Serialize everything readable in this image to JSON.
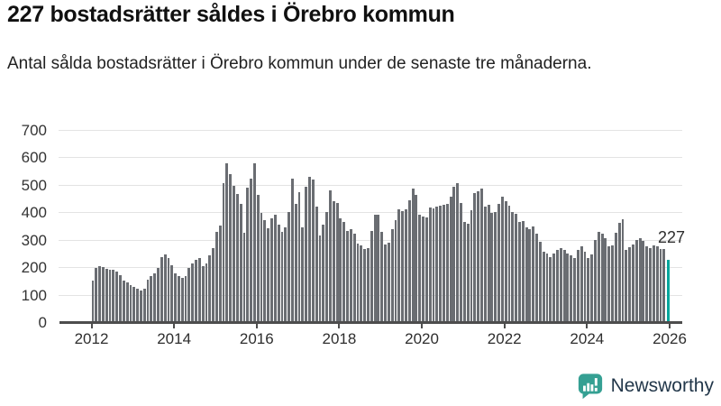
{
  "header": {
    "title": "227 bostadsrätter såldes i Örebro kommun",
    "subtitle": "Antal sålda bostadsrätter i Örebro kommun under de senaste tre månaderna."
  },
  "chart_data": {
    "type": "bar",
    "title": "227 bostadsrätter såldes i Örebro kommun",
    "xlabel": "",
    "ylabel": "Antal sålda bostadsrätter",
    "ylim": [
      0,
      700
    ],
    "y_ticks": [
      0,
      100,
      200,
      300,
      400,
      500,
      600,
      700
    ],
    "x_tick_labels": [
      "2012",
      "2014",
      "2016",
      "2018",
      "2020",
      "2022",
      "2024",
      "2026"
    ],
    "x_tick_month_offsets": [
      0,
      24,
      48,
      72,
      96,
      120,
      144,
      168
    ],
    "grid": true,
    "bar_color": "#6a6d72",
    "highlight_color": "#00a69c",
    "years": [
      {
        "year": "2012",
        "values": [
          152,
          196,
          205,
          199,
          193,
          191,
          189,
          183,
          172,
          152,
          143,
          136
        ]
      },
      {
        "year": "2013",
        "values": [
          128,
          122,
          114,
          121,
          154,
          168,
          177,
          196,
          235,
          245,
          232,
          206
        ]
      },
      {
        "year": "2014",
        "values": [
          178,
          168,
          160,
          166,
          196,
          214,
          228,
          232,
          205,
          215,
          242,
          268
        ]
      },
      {
        "year": "2015",
        "values": [
          330,
          352,
          505,
          578,
          539,
          495,
          467,
          430,
          325,
          489,
          524,
          580
        ]
      },
      {
        "year": "2016",
        "values": [
          463,
          398,
          370,
          342,
          378,
          391,
          356,
          328,
          344,
          400,
          522,
          430
        ]
      },
      {
        "year": "2017",
        "values": [
          472,
          344,
          494,
          528,
          520,
          422,
          317,
          356,
          400,
          480,
          440,
          435
        ]
      },
      {
        "year": "2018",
        "values": [
          378,
          364,
          332,
          339,
          322,
          286,
          278,
          267,
          269,
          333,
          391,
          391
        ]
      },
      {
        "year": "2019",
        "values": [
          328,
          281,
          289,
          339,
          370,
          410,
          405,
          410,
          443,
          485,
          465,
          391
        ]
      },
      {
        "year": "2020",
        "values": [
          386,
          380,
          417,
          413,
          421,
          424,
          428,
          432,
          457,
          493,
          505,
          433
        ]
      },
      {
        "year": "2021",
        "values": [
          364,
          358,
          408,
          469,
          478,
          486,
          422,
          428,
          398,
          400,
          431,
          456
        ]
      },
      {
        "year": "2022",
        "values": [
          441,
          425,
          402,
          394,
          364,
          369,
          344,
          339,
          347,
          322,
          294,
          256
        ]
      },
      {
        "year": "2023",
        "values": [
          250,
          236,
          250,
          264,
          269,
          264,
          250,
          242,
          233,
          262,
          275,
          255
        ]
      },
      {
        "year": "2024",
        "values": [
          233,
          247,
          299,
          327,
          321,
          306,
          277,
          280,
          324,
          361,
          374,
          264
        ]
      },
      {
        "year": "2025",
        "values": [
          272,
          281,
          300,
          307,
          296,
          276,
          270,
          278,
          276,
          267,
          265
        ]
      }
    ],
    "highlight": {
      "label": "227",
      "value": 227
    }
  },
  "footer": {
    "brand": "Newsworthy",
    "logo_color": "#35a093",
    "brand_text_color": "#22374a"
  }
}
